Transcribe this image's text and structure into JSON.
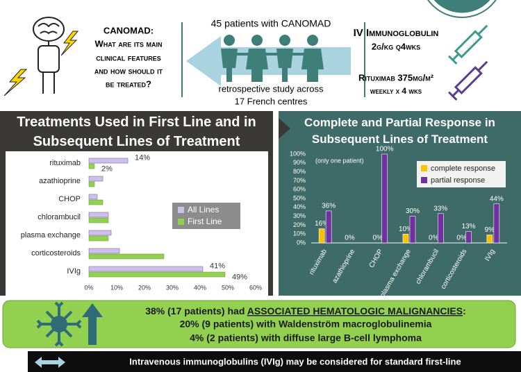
{
  "header": {
    "question_title": "CANOMAD:",
    "question_lines": [
      "What are its main",
      "clinical features",
      "and how should it",
      "be treated?"
    ],
    "study_top": "45 patients with CANOMAD",
    "study_bottom": [
      "retrospective study across",
      "17 French centres"
    ],
    "treatment_1": [
      "IV Immunoglobulin",
      "2g/kg q4wks"
    ],
    "treatment_2": [
      "Rituximab 375mg/m²",
      "weekly x 4 wks"
    ]
  },
  "chart_data": [
    {
      "type": "barh",
      "title": "Treatments Used in First Line and in Subsequent Lines of Treatment",
      "categories": [
        "rituximab",
        "azathioprine",
        "CHOP",
        "chlorambucil",
        "plasma exchange",
        "corticosteroids",
        "IVIg"
      ],
      "series": [
        {
          "name": "All Lines",
          "color": "#ccc0ea",
          "values": [
            14,
            5,
            3,
            7,
            8,
            11,
            41
          ],
          "value_labels": [
            "14%",
            null,
            null,
            null,
            null,
            null,
            "41%"
          ]
        },
        {
          "name": "First Line",
          "color": "#92d050",
          "values": [
            2,
            2,
            5,
            7,
            7,
            27,
            49
          ],
          "value_labels": [
            "2%",
            null,
            null,
            null,
            null,
            null,
            "49%"
          ]
        }
      ],
      "xlim": [
        0,
        60
      ],
      "xticks": [
        {
          "value": 0,
          "label": "0%"
        },
        {
          "value": 10,
          "label": "10%"
        },
        {
          "value": 20,
          "label": "20%"
        },
        {
          "value": 30,
          "label": "30%"
        },
        {
          "value": 40,
          "label": "40%"
        },
        {
          "value": 50,
          "label": "50%"
        },
        {
          "value": 60,
          "label": "60%"
        }
      ],
      "legend": "right"
    },
    {
      "type": "bar",
      "title": "Complete and Partial Response in Subsequent Lines of Treatment",
      "annotation": "(only one patient)",
      "categories": [
        "rituximab",
        "azathioprine",
        "CHOP",
        "plasma exchange",
        "chlorambucil",
        "corticosteroids",
        "IVIg"
      ],
      "series": [
        {
          "name": "complete response",
          "color": "#ffc000",
          "values": [
            16,
            0,
            0,
            10,
            0,
            0,
            9
          ],
          "value_labels": [
            "16%",
            "0%",
            "0%",
            "10%",
            "0%",
            "0%",
            "9%"
          ]
        },
        {
          "name": "partial response",
          "color": "#7030a0",
          "values": [
            36,
            0,
            100,
            30,
            33,
            13,
            44
          ],
          "value_labels": [
            "36%",
            null,
            "100%",
            "30%",
            "33%",
            "13%",
            "44%"
          ]
        }
      ],
      "ylim": [
        0,
        100
      ],
      "yticks": [
        {
          "value": 0,
          "label": "0%"
        },
        {
          "value": 10,
          "label": "10%"
        },
        {
          "value": 20,
          "label": "20%"
        },
        {
          "value": 30,
          "label": "30%"
        },
        {
          "value": 40,
          "label": "40%"
        },
        {
          "value": 50,
          "label": "50%"
        },
        {
          "value": 60,
          "label": "60%"
        },
        {
          "value": 70,
          "label": "70%"
        },
        {
          "value": 80,
          "label": "80%"
        },
        {
          "value": 90,
          "label": "90%"
        },
        {
          "value": 100,
          "label": "100%"
        }
      ],
      "legend": "top-right"
    }
  ],
  "banner": {
    "prefix": "38% (17 patients) had ",
    "emphasis": "ASSOCIATED HEMATOLOGIC MALIGNANCIES",
    "suffix": ":",
    "lines": [
      "20% (9 patients) with Waldenström macroglobulinemia",
      "4% (2 patients) with diffuse large B-cell lymphoma"
    ]
  },
  "footer": {
    "text": "Intravenous immunoglobulins (IVIg) may be considered for standard first-line"
  }
}
